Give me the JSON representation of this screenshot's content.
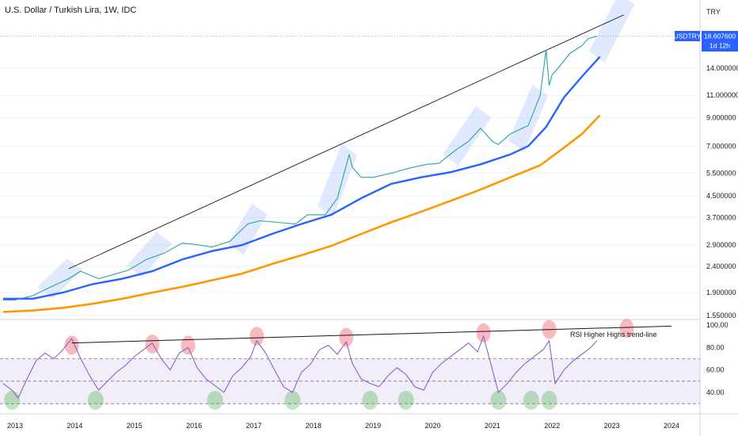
{
  "chart_data": {
    "type": "line",
    "title": "U.S. Dollar / Turkish Lira, 1W, IDC",
    "currency": "TRY",
    "symbol": "USDTRY",
    "last_price": "18.607600",
    "countdown": "1d 12h",
    "x_ticks": [
      "2013",
      "2014",
      "2015",
      "2016",
      "2017",
      "2018",
      "2019",
      "2020",
      "2021",
      "2022",
      "2023",
      "2024"
    ],
    "price_ticks": [
      "14.000000",
      "11.000000",
      "9.000000",
      "7.000000",
      "5.500000",
      "4.500000",
      "3.700000",
      "2.900000",
      "2.400000",
      "1.900000",
      "1.550000"
    ],
    "price_tick_values": [
      14,
      11,
      9,
      7,
      5.5,
      4.5,
      3.7,
      2.9,
      2.4,
      1.9,
      1.55
    ],
    "rsi_ticks": [
      "100.00",
      "80.00",
      "60.00",
      "40.00"
    ],
    "rsi_tick_values": [
      100,
      80,
      60,
      40
    ],
    "rsi_band": [
      30,
      70
    ],
    "annotation": "RSI Higher Highs trend-line",
    "price_series": {
      "x": [
        2012.8,
        2013.0,
        2013.3,
        2013.6,
        2013.9,
        2014.1,
        2014.4,
        2014.7,
        2014.9,
        2015.2,
        2015.5,
        2015.8,
        2016.0,
        2016.3,
        2016.6,
        2016.9,
        2017.1,
        2017.4,
        2017.7,
        2017.9,
        2018.2,
        2018.4,
        2018.6,
        2018.65,
        2018.8,
        2019.0,
        2019.3,
        2019.6,
        2019.9,
        2020.1,
        2020.4,
        2020.6,
        2020.8,
        2021.0,
        2021.1,
        2021.3,
        2021.6,
        2021.8,
        2021.9,
        2021.95,
        2022.0,
        2022.1,
        2022.3,
        2022.5,
        2022.6,
        2022.75
      ],
      "close": [
        1.78,
        1.78,
        1.85,
        2.0,
        2.15,
        2.3,
        2.15,
        2.25,
        2.32,
        2.55,
        2.7,
        2.95,
        2.92,
        2.85,
        3.0,
        3.5,
        3.6,
        3.55,
        3.5,
        3.8,
        3.8,
        4.4,
        6.5,
        5.8,
        5.3,
        5.3,
        5.5,
        5.75,
        5.95,
        6.0,
        6.8,
        7.3,
        8.2,
        7.3,
        7.1,
        7.8,
        8.4,
        11.0,
        16.5,
        12.0,
        13.2,
        14.0,
        16.0,
        17.1,
        18.2,
        18.6
      ]
    },
    "ma_blue": {
      "x": [
        2012.8,
        2013.3,
        2013.8,
        2014.3,
        2014.8,
        2015.3,
        2015.8,
        2016.3,
        2016.8,
        2017.3,
        2017.8,
        2018.3,
        2018.8,
        2019.3,
        2019.8,
        2020.3,
        2020.8,
        2021.3,
        2021.6,
        2021.9,
        2022.2,
        2022.5,
        2022.8
      ],
      "values": [
        1.8,
        1.8,
        1.9,
        2.05,
        2.15,
        2.3,
        2.55,
        2.75,
        2.9,
        3.2,
        3.5,
        3.8,
        4.4,
        5.0,
        5.3,
        5.55,
        5.95,
        6.5,
        7.0,
        8.3,
        10.8,
        13.0,
        15.5
      ]
    },
    "ma_orange": {
      "x": [
        2012.8,
        2013.3,
        2013.8,
        2014.3,
        2014.8,
        2015.3,
        2015.8,
        2016.3,
        2016.8,
        2017.3,
        2017.8,
        2018.3,
        2018.8,
        2019.3,
        2019.8,
        2020.3,
        2020.8,
        2021.3,
        2021.8,
        2022.2,
        2022.5,
        2022.8
      ],
      "values": [
        1.6,
        1.62,
        1.66,
        1.72,
        1.8,
        1.9,
        2.0,
        2.12,
        2.25,
        2.45,
        2.65,
        2.88,
        3.2,
        3.55,
        3.9,
        4.3,
        4.75,
        5.3,
        5.9,
        6.9,
        7.8,
        9.2
      ]
    },
    "rsi_series": {
      "x": [
        2012.8,
        2012.95,
        2013.05,
        2013.2,
        2013.35,
        2013.5,
        2013.65,
        2013.8,
        2013.95,
        2014.1,
        2014.25,
        2014.4,
        2014.55,
        2014.7,
        2014.85,
        2015.0,
        2015.15,
        2015.3,
        2015.45,
        2015.6,
        2015.75,
        2015.9,
        2016.05,
        2016.2,
        2016.35,
        2016.5,
        2016.65,
        2016.8,
        2016.95,
        2017.05,
        2017.2,
        2017.35,
        2017.5,
        2017.65,
        2017.8,
        2017.95,
        2018.1,
        2018.25,
        2018.4,
        2018.55,
        2018.65,
        2018.8,
        2018.95,
        2019.1,
        2019.25,
        2019.4,
        2019.55,
        2019.7,
        2019.85,
        2020.0,
        2020.15,
        2020.3,
        2020.45,
        2020.6,
        2020.75,
        2020.85,
        2021.0,
        2021.1,
        2021.25,
        2021.4,
        2021.55,
        2021.7,
        2021.85,
        2021.95,
        2022.05,
        2022.2,
        2022.35,
        2022.5,
        2022.65,
        2022.75
      ],
      "values": [
        48,
        42,
        35,
        52,
        68,
        75,
        70,
        78,
        88,
        70,
        55,
        42,
        50,
        58,
        64,
        72,
        78,
        84,
        70,
        60,
        75,
        80,
        62,
        52,
        46,
        40,
        55,
        62,
        72,
        86,
        75,
        60,
        45,
        40,
        58,
        65,
        78,
        82,
        74,
        85,
        66,
        52,
        48,
        45,
        55,
        62,
        56,
        45,
        42,
        58,
        66,
        72,
        78,
        84,
        76,
        90,
        60,
        40,
        48,
        58,
        66,
        72,
        78,
        86,
        48,
        60,
        68,
        74,
        80,
        86
      ]
    },
    "rsi_peaks_x": [
      2013.95,
      2015.3,
      2015.9,
      2017.05,
      2018.55,
      2020.85,
      2021.95,
      2023.25
    ],
    "rsi_lows_x": [
      2012.95,
      2014.35,
      2016.35,
      2017.65,
      2018.95,
      2019.55,
      2021.1,
      2021.65,
      2021.95
    ],
    "price_trend_line": {
      "x": [
        2013.9,
        2023.2
      ],
      "values": [
        2.35,
        22.5
      ]
    },
    "rsi_trend_line": {
      "x": [
        2013.95,
        2024.0
      ],
      "values": [
        84,
        99
      ]
    }
  }
}
